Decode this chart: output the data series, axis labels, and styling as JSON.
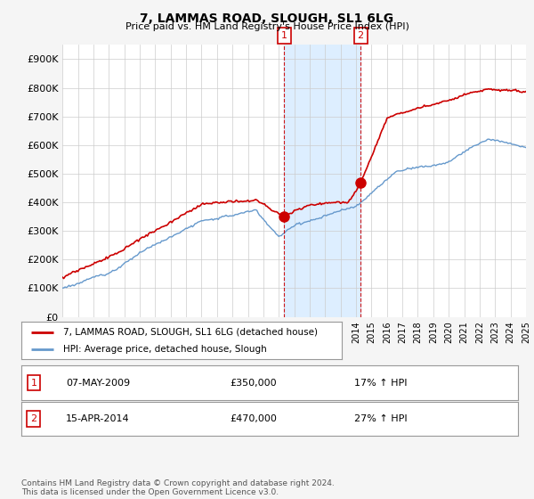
{
  "title": "7, LAMMAS ROAD, SLOUGH, SL1 6LG",
  "subtitle": "Price paid vs. HM Land Registry's House Price Index (HPI)",
  "ylim": [
    0,
    950000
  ],
  "yticks": [
    0,
    100000,
    200000,
    300000,
    400000,
    500000,
    600000,
    700000,
    800000,
    900000
  ],
  "ytick_labels": [
    "£0",
    "£100K",
    "£200K",
    "£300K",
    "£400K",
    "£500K",
    "£600K",
    "£700K",
    "£800K",
    "£900K"
  ],
  "plot_bg": "#ffffff",
  "fig_bg": "#f5f5f5",
  "line1_color": "#cc0000",
  "line2_color": "#6699cc",
  "shade_color": "#ddeeff",
  "vline_color": "#cc0000",
  "sale1_x": 2009.35,
  "sale1_y": 350000,
  "sale2_x": 2014.29,
  "sale2_y": 470000,
  "legend_line1": "7, LAMMAS ROAD, SLOUGH, SL1 6LG (detached house)",
  "legend_line2": "HPI: Average price, detached house, Slough",
  "table_entries": [
    {
      "num": "1",
      "date": "07-MAY-2009",
      "price": "£350,000",
      "change": "17% ↑ HPI"
    },
    {
      "num": "2",
      "date": "15-APR-2014",
      "price": "£470,000",
      "change": "27% ↑ HPI"
    }
  ],
  "footer": "Contains HM Land Registry data © Crown copyright and database right 2024.\nThis data is licensed under the Open Government Licence v3.0.",
  "xmin": 1995,
  "xmax": 2025
}
